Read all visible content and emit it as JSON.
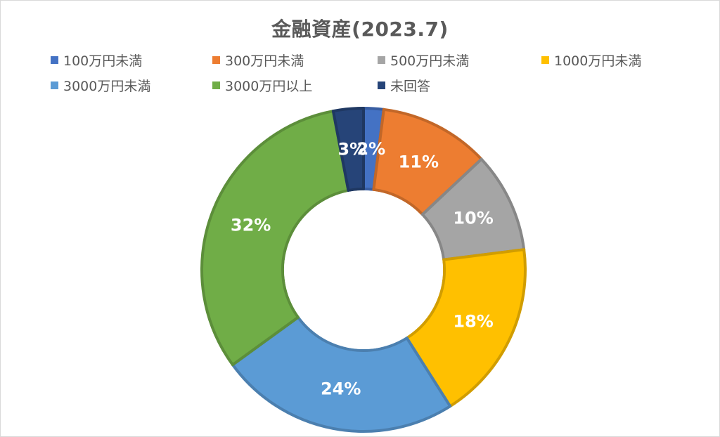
{
  "chart_data": {
    "type": "pie",
    "title": "金融資産(2023.7)",
    "categories": [
      "100万円未満",
      "300万円未満",
      "500万円未満",
      "1000万円未満",
      "3000万円未満",
      "3000万円以上",
      "未回答"
    ],
    "values": [
      2,
      11,
      10,
      18,
      24,
      32,
      3
    ],
    "value_labels": [
      "2%",
      "11%",
      "10%",
      "18%",
      "24%",
      "32%",
      "3%"
    ],
    "unit": "%",
    "donut": true,
    "colors": [
      "#4472c4",
      "#ed7d31",
      "#a5a5a5",
      "#ffc000",
      "#5b9bd5",
      "#70ad47",
      "#264478"
    ],
    "legend_position": "top"
  }
}
